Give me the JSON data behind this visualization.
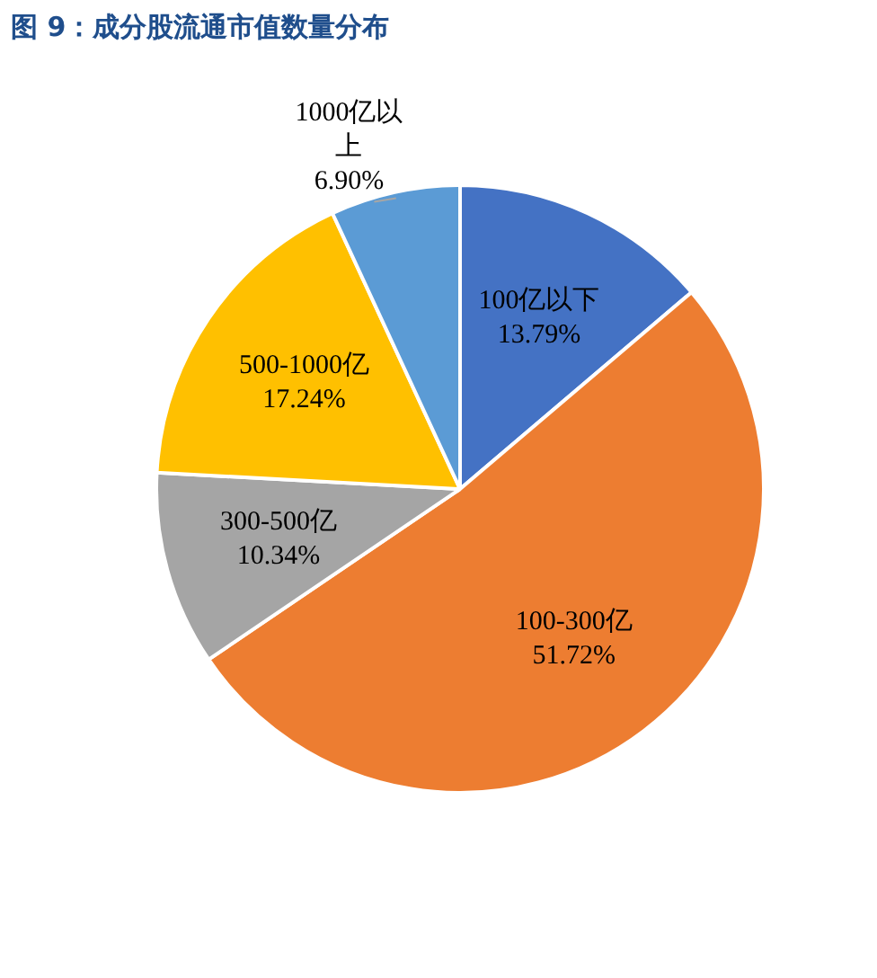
{
  "chart_data": {
    "type": "pie",
    "title": "图 9：成分股流通市值数量分布",
    "categories": [
      "100亿以下",
      "100-300亿",
      "300-500亿",
      "500-1000亿",
      "1000亿以上"
    ],
    "values": [
      13.79,
      51.72,
      10.34,
      17.24,
      6.9
    ],
    "colors": [
      "#4472c4",
      "#ed7d31",
      "#a5a5a5",
      "#ffc000",
      "#5b9bd5"
    ],
    "value_labels": [
      "13.79%",
      "51.72%",
      "10.34%",
      "17.24%",
      "6.90%"
    ],
    "legend": false
  }
}
